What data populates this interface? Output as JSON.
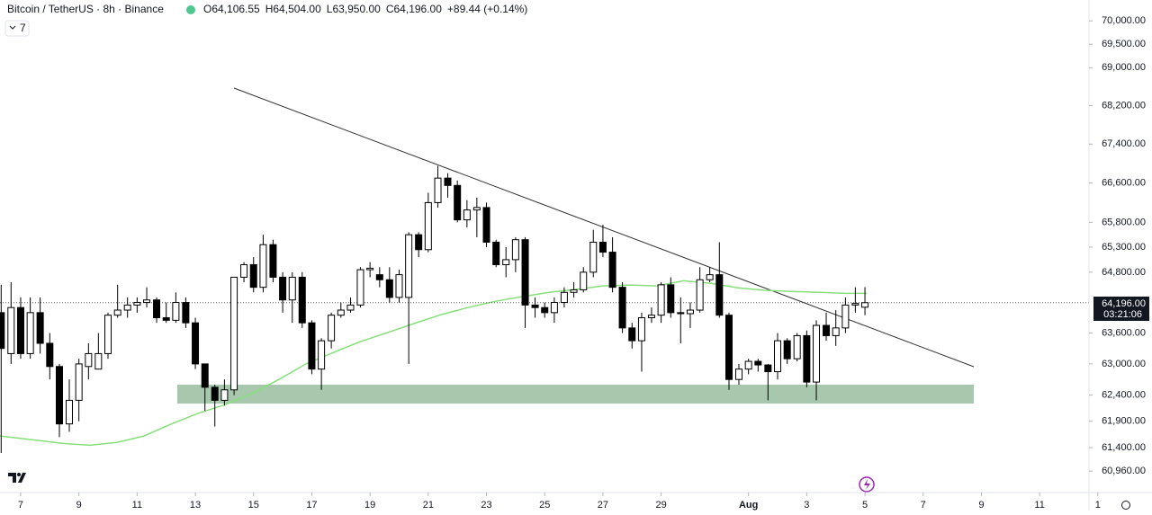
{
  "chart_data": {
    "type": "candlestick",
    "title": "Bitcoin / TetherUS · 8h · Binance",
    "ohlc_labels": [
      "O64,106.55",
      "H64,504.00",
      "L63,950.00",
      "C64,196.00",
      "+89.44 (+0.14%)"
    ],
    "indicator_count": 7,
    "last_price_label": "64,196.00",
    "countdown": "03:21:06",
    "up_color": "#ffffff",
    "down_color": "#000000",
    "border_color": "#000000",
    "log_scale": true,
    "x": [
      -0.67,
      -0.33,
      0,
      0.33,
      0.67,
      1,
      1.33,
      1.67,
      2,
      2.33,
      2.67,
      3,
      3.33,
      3.67,
      4,
      4.33,
      4.67,
      5,
      5.33,
      5.67,
      6,
      6.33,
      6.67,
      7,
      7.33,
      7.67,
      8,
      8.33,
      8.67,
      9,
      9.33,
      9.67,
      10,
      10.33,
      10.67,
      11,
      11.33,
      11.67,
      12,
      12.33,
      12.67,
      13,
      13.33,
      13.67,
      14,
      14.33,
      14.67,
      15,
      15.33,
      15.67,
      16,
      16.33,
      16.67,
      17,
      17.33,
      17.67,
      18,
      18.33,
      18.67,
      19,
      19.33,
      19.67,
      20,
      20.33,
      20.67,
      21,
      21.33,
      21.67,
      22,
      22.33,
      22.67,
      23,
      23.33,
      23.67,
      24,
      24.33,
      24.67,
      25,
      25.33,
      25.67,
      26,
      26.33,
      26.67,
      27,
      27.33,
      27.67,
      28,
      28.33,
      28.67,
      29
    ],
    "open": [
      64000,
      63200,
      64100,
      63200,
      64000,
      63400,
      62950,
      61850,
      62300,
      62950,
      62900,
      63200,
      63950,
      64050,
      64150,
      64200,
      64250,
      63900,
      63850,
      64200,
      63800,
      63000,
      62550,
      62300,
      62500,
      64700,
      64950,
      64500,
      65350,
      64700,
      64250,
      64700,
      63800,
      62900,
      63450,
      63950,
      64050,
      64150,
      64850,
      64750,
      64650,
      64300,
      64300,
      65550,
      65250,
      66200,
      66700,
      66550,
      65850,
      66050,
      66100,
      65400,
      64950,
      65050,
      65450,
      64150,
      64100,
      64000,
      64200,
      64400,
      64450,
      64800,
      65400,
      65200,
      64500,
      63700,
      63450,
      63900,
      63950,
      64550,
      64000,
      63980,
      64050,
      64650,
      64750,
      63950,
      62700,
      62900,
      63050,
      62980,
      62850,
      63450,
      63100,
      63550,
      62650,
      63750,
      63550,
      63700,
      64150,
      64106.55
    ],
    "high": [
      64550,
      64600,
      64300,
      64300,
      64300,
      63600,
      63000,
      62700,
      63100,
      63400,
      63600,
      64000,
      64550,
      64300,
      64300,
      64500,
      64300,
      64200,
      64400,
      64300,
      63900,
      63000,
      62600,
      62700,
      64700,
      65000,
      65100,
      65550,
      65450,
      64800,
      64800,
      64800,
      63850,
      63500,
      64000,
      64200,
      64300,
      64900,
      65000,
      64900,
      64900,
      64850,
      65600,
      65600,
      66400,
      66950,
      66800,
      66650,
      66250,
      66300,
      66200,
      65450,
      65300,
      65500,
      65500,
      64300,
      64200,
      64300,
      64500,
      64600,
      64900,
      65650,
      65750,
      65500,
      64600,
      63800,
      64000,
      64100,
      64600,
      64700,
      64300,
      64200,
      64900,
      64900,
      65400,
      64000,
      63000,
      63100,
      63100,
      63000,
      63600,
      63500,
      63600,
      63650,
      63850,
      64000,
      64050,
      64300,
      64500,
      64504
    ],
    "low": [
      61300,
      63000,
      63100,
      63100,
      63200,
      62700,
      61600,
      61700,
      61900,
      62700,
      62900,
      63100,
      63900,
      63900,
      64000,
      64100,
      63800,
      63800,
      63800,
      63700,
      62900,
      62100,
      61800,
      62200,
      62400,
      64600,
      64400,
      64400,
      64600,
      64000,
      63800,
      63700,
      62800,
      62500,
      63300,
      63900,
      64000,
      64100,
      64700,
      64500,
      64200,
      64200,
      63000,
      65100,
      65200,
      66100,
      66300,
      65800,
      65700,
      65500,
      65300,
      64900,
      64700,
      64800,
      63700,
      63900,
      63900,
      63800,
      64100,
      64300,
      64400,
      64700,
      65100,
      64400,
      63600,
      63300,
      62850,
      63800,
      63800,
      63900,
      63400,
      63700,
      64000,
      64600,
      63900,
      62500,
      62600,
      62800,
      62850,
      62300,
      62700,
      63000,
      63050,
      62550,
      62300,
      63450,
      63350,
      63600,
      64000,
      63950
    ],
    "close": [
      63300,
      64100,
      63200,
      64000,
      63400,
      62950,
      61850,
      62300,
      63000,
      63200,
      63200,
      63950,
      64050,
      64150,
      64200,
      64250,
      63900,
      63850,
      64200,
      63800,
      63000,
      62550,
      62300,
      62500,
      64700,
      64950,
      64500,
      65350,
      64700,
      64250,
      64700,
      63800,
      62900,
      63450,
      63950,
      64050,
      64150,
      64850,
      64880,
      64650,
      64300,
      64750,
      65550,
      65250,
      66200,
      66700,
      66550,
      65850,
      66050,
      66100,
      65400,
      64950,
      65050,
      65450,
      64150,
      64100,
      64000,
      64200,
      64400,
      64450,
      64800,
      65400,
      65200,
      64500,
      63700,
      63450,
      63900,
      63950,
      64550,
      64000,
      63980,
      64050,
      64650,
      64750,
      63950,
      62700,
      62900,
      63050,
      62980,
      62850,
      63450,
      63100,
      63550,
      62650,
      63750,
      63550,
      63700,
      64150,
      64180,
      64196
    ],
    "lines": [
      {
        "color": "#86e07a",
        "x": [
          -0.71,
          0.53,
          1.45,
          2.38,
          3.31,
          4.23,
          5.16,
          6.09,
          7.02,
          7.94,
          8.87,
          9.8,
          10.73,
          11.65,
          12.58,
          13.51,
          14.44,
          15.36,
          16.29,
          17.22,
          18.15,
          19.07,
          20,
          20.93,
          21.85,
          22.78,
          23.71,
          24.64,
          25.56,
          26.49,
          27.42,
          28.35,
          29.06
        ],
        "values": [
          61620,
          61540,
          61480,
          61445,
          61500,
          61620,
          61845,
          62050,
          62215,
          62425,
          62700,
          63000,
          63220,
          63430,
          63605,
          63785,
          63960,
          64100,
          64222,
          64315,
          64400,
          64458,
          64527,
          64545,
          64527,
          64630,
          64580,
          64490,
          64440,
          64420,
          64400,
          64380,
          64380
        ]
      }
    ],
    "xlim": [
      -0.71,
      38.86
    ],
    "xticks": [
      {
        "value": 0,
        "label": "7"
      },
      {
        "value": 2,
        "label": "9"
      },
      {
        "value": 4,
        "label": "11"
      },
      {
        "value": 6,
        "label": "13"
      },
      {
        "value": 8,
        "label": "15"
      },
      {
        "value": 10,
        "label": "17"
      },
      {
        "value": 12,
        "label": "19"
      },
      {
        "value": 14,
        "label": "21"
      },
      {
        "value": 16,
        "label": "23"
      },
      {
        "value": 18,
        "label": "25"
      },
      {
        "value": 20,
        "label": "27"
      },
      {
        "value": 22,
        "label": "29"
      },
      {
        "value": 25,
        "label": "Aug"
      },
      {
        "value": 27,
        "label": "3"
      },
      {
        "value": 29,
        "label": "5"
      },
      {
        "value": 31,
        "label": "7"
      },
      {
        "value": 33,
        "label": "9"
      },
      {
        "value": 35,
        "label": "11"
      },
      {
        "value": 37,
        "label": "1"
      }
    ],
    "ylim": [
      60560,
      70450
    ],
    "yticks": [
      {
        "value": 70000,
        "label": "70,000.00"
      },
      {
        "value": 69500,
        "label": "69,500.00"
      },
      {
        "value": 69000,
        "label": "69,000.00"
      },
      {
        "value": 68200,
        "label": "68,200.00"
      },
      {
        "value": 67400,
        "label": "67,400.00"
      },
      {
        "value": 66600,
        "label": "66,600.00"
      },
      {
        "value": 65800,
        "label": "65,800.00"
      },
      {
        "value": 65300,
        "label": "65,300.00"
      },
      {
        "value": 64800,
        "label": "64,800.00"
      },
      {
        "value": 63600,
        "label": "63,600.00"
      },
      {
        "value": 63000,
        "label": "63,000.00"
      },
      {
        "value": 62400,
        "label": "62,400.00"
      },
      {
        "value": 61900,
        "label": "61,900.00"
      },
      {
        "value": 61400,
        "label": "61,400.00"
      },
      {
        "value": 60960,
        "label": "60,960.00"
      }
    ]
  }
}
